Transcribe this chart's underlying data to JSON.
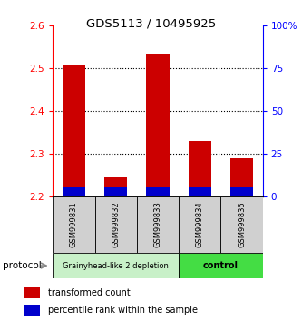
{
  "title": "GDS5113 / 10495925",
  "samples": [
    "GSM999831",
    "GSM999832",
    "GSM999833",
    "GSM999834",
    "GSM999835"
  ],
  "red_values": [
    2.51,
    2.245,
    2.535,
    2.33,
    2.29
  ],
  "blue_values": [
    2.222,
    2.221,
    2.222,
    2.222,
    2.222
  ],
  "ymin": 2.2,
  "ymax": 2.6,
  "yticks_left": [
    2.2,
    2.3,
    2.4,
    2.5,
    2.6
  ],
  "yticks_right": [
    0,
    25,
    50,
    75,
    100
  ],
  "ytick_right_labels": [
    "0",
    "25",
    "50",
    "75",
    "100%"
  ],
  "bar_width": 0.55,
  "red_color": "#cc0000",
  "blue_color": "#0000cc",
  "group1_label": "Grainyhead-like 2 depletion",
  "group2_label": "control",
  "group1_color": "#c8f0c8",
  "group2_color": "#44dd44",
  "group1_indices": [
    0,
    1,
    2
  ],
  "group2_indices": [
    3,
    4
  ],
  "protocol_label": "protocol",
  "legend_red": "transformed count",
  "legend_blue": "percentile rank within the sample",
  "title_fontsize": 9.5,
  "tick_fontsize": 7.5,
  "sample_fontsize": 6,
  "group_fontsize1": 6,
  "group_fontsize2": 7,
  "legend_fontsize": 7,
  "protocol_fontsize": 7.5,
  "bg_color": "#ffffff",
  "sample_bg": "#d0d0d0",
  "grid_color": "black",
  "grid_linestyle": ":"
}
